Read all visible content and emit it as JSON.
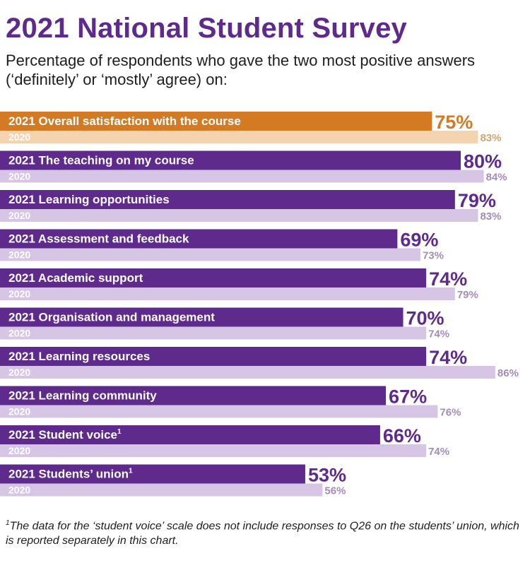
{
  "title": "2021 National Student Survey",
  "subtitle": "Percentage of respondents who gave the two most positive answers (‘definitely’ or ‘mostly’ agree) on:",
  "footnote": {
    "marker": "1",
    "text": "The data for the ‘student voice’ scale does not include responses to Q26 on the students’ union, which is reported separately in this chart."
  },
  "colors": {
    "highlight_2021": "#d47a22",
    "highlight_2020": "#f4d3b0",
    "highlight_2020_label": "#d6a26d",
    "main_2021": "#5e2a8c",
    "main_2020": "#d7c5e6",
    "main_2020_label": "#a48bbd",
    "row_text_2020": "#ffffff"
  },
  "chart_data": {
    "type": "bar",
    "orientation": "horizontal",
    "categories": [
      "Overall satisfaction with the course",
      "The teaching on my course",
      "Learning opportunities",
      "Assessment and feedback",
      "Academic support",
      "Organisation and management",
      "Learning resources",
      "Learning community",
      "Student voice",
      "Students’ union"
    ],
    "category_footnote_marks": [
      "",
      "",
      "",
      "",
      "",
      "",
      "",
      "",
      "1",
      "1"
    ],
    "series": [
      {
        "name": "2021",
        "values": [
          75,
          80,
          79,
          69,
          74,
          70,
          74,
          67,
          66,
          53
        ]
      },
      {
        "name": "2020",
        "values": [
          83,
          84,
          83,
          73,
          79,
          74,
          86,
          76,
          74,
          56
        ]
      }
    ],
    "value_suffix": "%",
    "highlighted_category_index": 0,
    "xlim": [
      0,
      100
    ]
  }
}
